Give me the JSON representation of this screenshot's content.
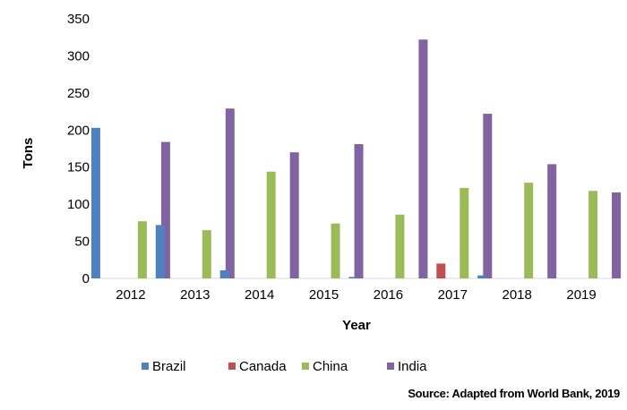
{
  "chart_data": {
    "type": "bar",
    "categories": [
      "2012",
      "2013",
      "2014",
      "2015",
      "2016",
      "2017",
      "2018",
      "2019"
    ],
    "series": [
      {
        "name": "Brazil",
        "color": "#4f81bd",
        "values": [
          203,
          72,
          11,
          0,
          2,
          0,
          4,
          0
        ]
      },
      {
        "name": "Canada",
        "color": "#c0504d",
        "values": [
          0,
          0,
          0,
          0,
          0,
          20,
          0,
          0
        ]
      },
      {
        "name": "China",
        "color": "#9bbb59",
        "values": [
          77,
          65,
          144,
          74,
          86,
          122,
          129,
          118
        ]
      },
      {
        "name": "India",
        "color": "#8064a2",
        "values": [
          184,
          229,
          170,
          181,
          322,
          222,
          154,
          116
        ]
      }
    ],
    "xlabel": "Year",
    "ylabel": "Tons",
    "ylim": [
      0,
      350
    ],
    "yticks": [
      "0",
      "50",
      "100",
      "150",
      "200",
      "250",
      "300",
      "350"
    ],
    "grid": false,
    "legend_position": "bottom"
  },
  "source": "Source: Adapted from World Bank, 2019"
}
